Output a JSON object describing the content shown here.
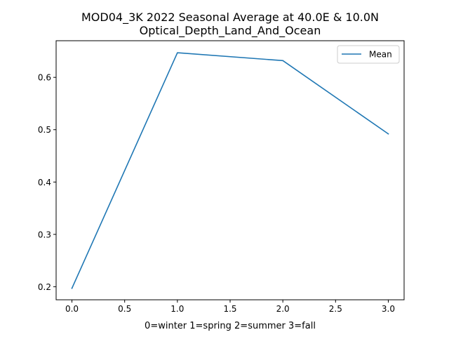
{
  "chart_data": {
    "type": "line",
    "title": "MOD04_3K 2022 Seasonal Average at 40.0E & 10.0N",
    "subtitle": "Optical_Depth_Land_And_Ocean",
    "xlabel": "0=winter 1=spring 2=summer 3=fall",
    "ylabel": "",
    "xlim": [
      -0.15,
      3.15
    ],
    "ylim": [
      0.175,
      0.67
    ],
    "x_ticks": [
      0.0,
      0.5,
      1.0,
      1.5,
      2.0,
      2.5,
      3.0
    ],
    "x_tick_labels": [
      "0.0",
      "0.5",
      "1.0",
      "1.5",
      "2.0",
      "2.5",
      "3.0"
    ],
    "y_ticks": [
      0.2,
      0.3,
      0.4,
      0.5,
      0.6
    ],
    "y_tick_labels": [
      "0.2",
      "0.3",
      "0.4",
      "0.5",
      "0.6"
    ],
    "grid": false,
    "legend_position": "top-right",
    "series": [
      {
        "name": "Mean",
        "color": "#1f77b4",
        "x": [
          0,
          1,
          2,
          3
        ],
        "y": [
          0.197,
          0.647,
          0.632,
          0.492
        ]
      }
    ]
  }
}
